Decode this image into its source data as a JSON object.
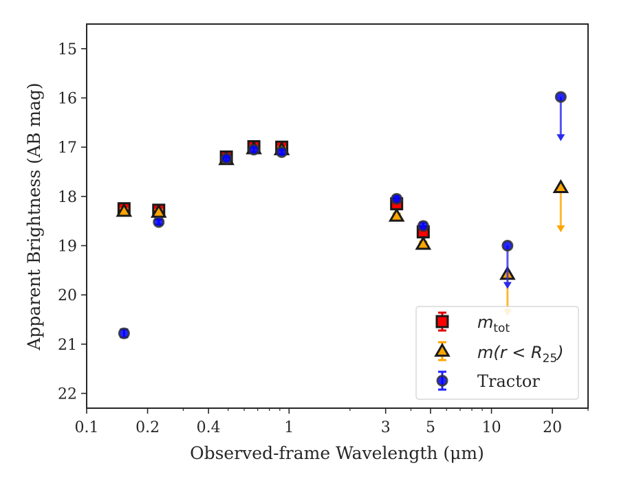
{
  "chart_data": {
    "type": "scatter",
    "xlabel": "Observed-frame Wavelength (μm)",
    "ylabel": "Apparent Brightness (AB mag)",
    "xscale": "log",
    "xlim": [
      0.1,
      30
    ],
    "ylim": [
      22.3,
      14.5
    ],
    "y_inverted": true,
    "x_ticks": [
      0.1,
      0.2,
      0.4,
      1,
      3,
      5,
      10,
      20
    ],
    "x_tick_labels": [
      "0.1",
      "0.2",
      "0.4",
      "1",
      "3",
      "5",
      "10",
      "20"
    ],
    "y_ticks": [
      15,
      16,
      17,
      18,
      19,
      20,
      21,
      22
    ],
    "y_tick_labels": [
      "15",
      "16",
      "17",
      "18",
      "19",
      "20",
      "21",
      "22"
    ],
    "grid": false,
    "legend_position": "lower-right",
    "series": [
      {
        "name": "m_tot",
        "legend_label_main": "m",
        "legend_label_sub": "tot",
        "marker": "square",
        "color": "#ff0000",
        "edge_color": "#1a1a1a",
        "points": [
          {
            "x": 0.153,
            "y": 18.25,
            "err": 0.05
          },
          {
            "x": 0.227,
            "y": 18.28,
            "err": 0.05
          },
          {
            "x": 0.49,
            "y": 17.2,
            "err": 0.05
          },
          {
            "x": 0.67,
            "y": 16.99,
            "err": 0.05
          },
          {
            "x": 0.92,
            "y": 17.0,
            "err": 0.05
          },
          {
            "x": 3.4,
            "y": 18.15,
            "err": 0.07
          },
          {
            "x": 4.6,
            "y": 18.72,
            "err": 0.08
          }
        ]
      },
      {
        "name": "m(r < R25)",
        "legend_label_main": "m(r < R",
        "legend_label_sub": "25",
        "legend_label_tail": ")",
        "marker": "triangle",
        "color": "#ffa500",
        "edge_color": "#1a1a1a",
        "points": [
          {
            "x": 0.153,
            "y": 18.3,
            "err": 0.05
          },
          {
            "x": 0.227,
            "y": 18.32,
            "err": 0.05
          },
          {
            "x": 0.49,
            "y": 17.25,
            "err": 0.05
          },
          {
            "x": 0.67,
            "y": 17.03,
            "err": 0.05
          },
          {
            "x": 0.92,
            "y": 17.05,
            "err": 0.05
          },
          {
            "x": 3.4,
            "y": 18.4,
            "err": 0.05
          },
          {
            "x": 4.6,
            "y": 18.97,
            "err": 0.05
          },
          {
            "x": 12,
            "y": 19.58,
            "upper_limit_to": 20.4
          },
          {
            "x": 22,
            "y": 17.82,
            "upper_limit_to": 18.7
          }
        ]
      },
      {
        "name": "Tractor",
        "marker": "circle",
        "color": "#0000ff",
        "edge_color": "#1a1a1a",
        "points": [
          {
            "x": 0.153,
            "y": 20.78,
            "err": 0.08
          },
          {
            "x": 0.227,
            "y": 18.52,
            "err": 0.05
          },
          {
            "x": 0.49,
            "y": 17.23,
            "err": 0.05
          },
          {
            "x": 0.67,
            "y": 17.05,
            "err": 0.05
          },
          {
            "x": 0.92,
            "y": 17.1,
            "err": 0.05
          },
          {
            "x": 3.4,
            "y": 18.05,
            "err": 0.06
          },
          {
            "x": 4.6,
            "y": 18.6,
            "err": 0.07
          },
          {
            "x": 12,
            "y": 19.0,
            "upper_limit_to": 19.85
          },
          {
            "x": 22,
            "y": 15.98,
            "upper_limit_to": 16.85
          }
        ]
      }
    ]
  }
}
